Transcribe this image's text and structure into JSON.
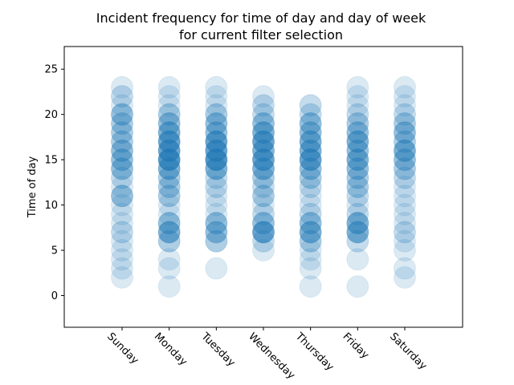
{
  "chart_data": {
    "type": "scatter",
    "title_lines": [
      "Incident frequency for time of day and day of week",
      "for current filter selection"
    ],
    "xlabel": "",
    "ylabel": "Time of day",
    "categories": [
      "Sunday",
      "Monday",
      "Tuesday",
      "Wednesday",
      "Thursday",
      "Friday",
      "Saturday"
    ],
    "ylim": [
      -3.5,
      27.5
    ],
    "yticks": [
      0,
      5,
      10,
      15,
      20,
      25
    ],
    "grid": false,
    "marker_color": "#1f77b4",
    "hours": [
      1,
      2,
      3,
      4,
      5,
      6,
      7,
      8,
      9,
      10,
      11,
      12,
      13,
      14,
      15,
      16,
      17,
      18,
      19,
      20,
      21,
      22,
      23
    ],
    "intensity": [
      [
        0,
        1,
        1,
        1,
        1,
        1,
        2,
        1,
        1,
        1,
        4,
        1,
        2,
        4,
        4,
        4,
        3,
        3,
        3,
        4,
        1,
        2,
        1
      ],
      [
        1,
        0,
        1,
        1,
        0,
        3,
        5,
        4,
        1,
        1,
        3,
        3,
        3,
        5,
        7,
        6,
        6,
        5,
        4,
        3,
        1,
        1,
        1
      ],
      [
        0,
        0,
        1,
        0,
        0,
        3,
        4,
        4,
        1,
        1,
        1,
        2,
        2,
        5,
        7,
        6,
        6,
        4,
        4,
        3,
        1,
        1,
        1
      ],
      [
        0,
        0,
        0,
        0,
        1,
        2,
        6,
        4,
        2,
        1,
        3,
        2,
        3,
        5,
        6,
        5,
        6,
        5,
        4,
        2,
        2,
        1,
        0
      ],
      [
        1,
        0,
        1,
        1,
        1,
        3,
        5,
        4,
        2,
        1,
        1,
        2,
        3,
        4,
        6,
        5,
        5,
        4,
        4,
        2,
        2,
        0,
        0
      ],
      [
        1,
        0,
        0,
        1,
        0,
        2,
        5,
        5,
        2,
        1,
        2,
        3,
        3,
        4,
        5,
        4,
        5,
        4,
        3,
        2,
        1,
        1,
        1
      ],
      [
        0,
        1,
        1,
        0,
        1,
        1,
        2,
        1,
        1,
        1,
        1,
        1,
        2,
        3,
        4,
        5,
        3,
        4,
        3,
        2,
        1,
        1,
        1
      ]
    ]
  }
}
